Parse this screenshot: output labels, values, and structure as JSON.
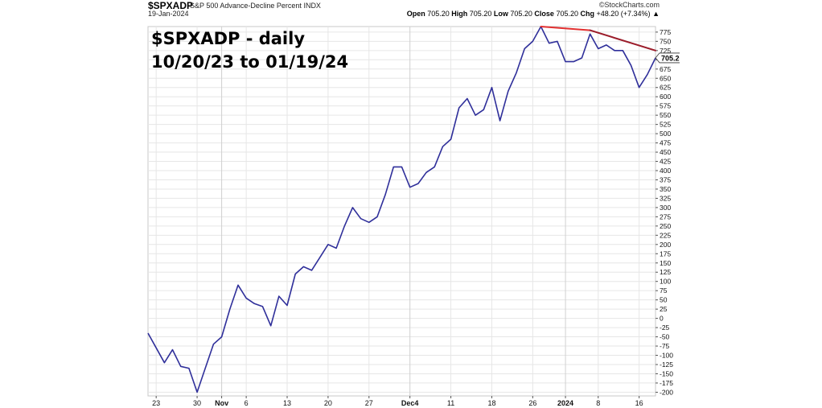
{
  "header": {
    "symbol": "$SPXADP",
    "description": "S&P 500 Advance-Decline Percent",
    "exchange": "INDX",
    "date": "19-Jan-2024",
    "watermark": "©StockCharts.com",
    "open_label": "Open",
    "open_value": "705.20",
    "high_label": "High",
    "high_value": "705.20",
    "low_label": "Low",
    "low_value": "705.20",
    "close_label": "Close",
    "close_value": "705.20",
    "chg_label": "Chg",
    "chg_value": "+48.20 (+7.34%)",
    "chg_arrow": "▲"
  },
  "annotation": {
    "line1": "$SPXADP - daily",
    "line2": "10/20/23 to 01/19/24"
  },
  "price_tag": "705.20",
  "colors": {
    "series": "#2f2f9a",
    "trend_red": "#e23030",
    "trend_dark_red": "#9b1c2a",
    "price_tag_bg": "#ffffff",
    "grid": "#e6e6e6"
  },
  "chart_data": {
    "type": "line",
    "title": "$SPXADP - daily",
    "subtitle": "10/20/23 to 01/19/24",
    "xlabel": "",
    "ylabel": "",
    "ylim": [
      -210,
      790
    ],
    "yticks": [
      -200,
      -175,
      -150,
      -125,
      -100,
      -75,
      -50,
      -25,
      0,
      25,
      50,
      75,
      100,
      125,
      150,
      175,
      200,
      225,
      250,
      275,
      300,
      325,
      350,
      375,
      400,
      425,
      450,
      475,
      500,
      525,
      550,
      575,
      600,
      625,
      650,
      675,
      700,
      725,
      750,
      775
    ],
    "x_ticks": [
      {
        "index": 1,
        "label": "23",
        "bold": false
      },
      {
        "index": 6,
        "label": "30",
        "bold": false
      },
      {
        "index": 9,
        "label": "Nov",
        "bold": true
      },
      {
        "index": 12,
        "label": "6",
        "bold": false
      },
      {
        "index": 17,
        "label": "13",
        "bold": false
      },
      {
        "index": 22,
        "label": "20",
        "bold": false
      },
      {
        "index": 27,
        "label": "27",
        "bold": false
      },
      {
        "index": 32,
        "label": "Dec4",
        "bold": true
      },
      {
        "index": 37,
        "label": "11",
        "bold": false
      },
      {
        "index": 42,
        "label": "18",
        "bold": false
      },
      {
        "index": 47,
        "label": "26",
        "bold": false
      },
      {
        "index": 51,
        "label": "2024",
        "bold": true
      },
      {
        "index": 55,
        "label": "8",
        "bold": false
      },
      {
        "index": 60,
        "label": "16",
        "bold": false
      }
    ],
    "grid": true,
    "series": [
      {
        "name": "$SPXADP",
        "values": [
          -40,
          -80,
          -120,
          -85,
          -130,
          -135,
          -200,
          -135,
          -70,
          -50,
          25,
          90,
          55,
          40,
          32,
          -20,
          60,
          35,
          120,
          140,
          130,
          165,
          200,
          190,
          250,
          300,
          270,
          260,
          275,
          335,
          410,
          410,
          355,
          365,
          395,
          410,
          465,
          485,
          570,
          595,
          550,
          565,
          625,
          535,
          615,
          665,
          730,
          750,
          790,
          745,
          750,
          695,
          695,
          705,
          770,
          730,
          740,
          725,
          725,
          685,
          625,
          660,
          705
        ]
      }
    ],
    "trendlines": [
      {
        "color": "red",
        "from_index": 48,
        "from_value": 790,
        "to_index": 54,
        "to_value": 780
      },
      {
        "color": "dark-red",
        "from_index": 54,
        "from_value": 780,
        "to_index": 62,
        "to_value": 725
      }
    ],
    "last_value": 705.2
  }
}
